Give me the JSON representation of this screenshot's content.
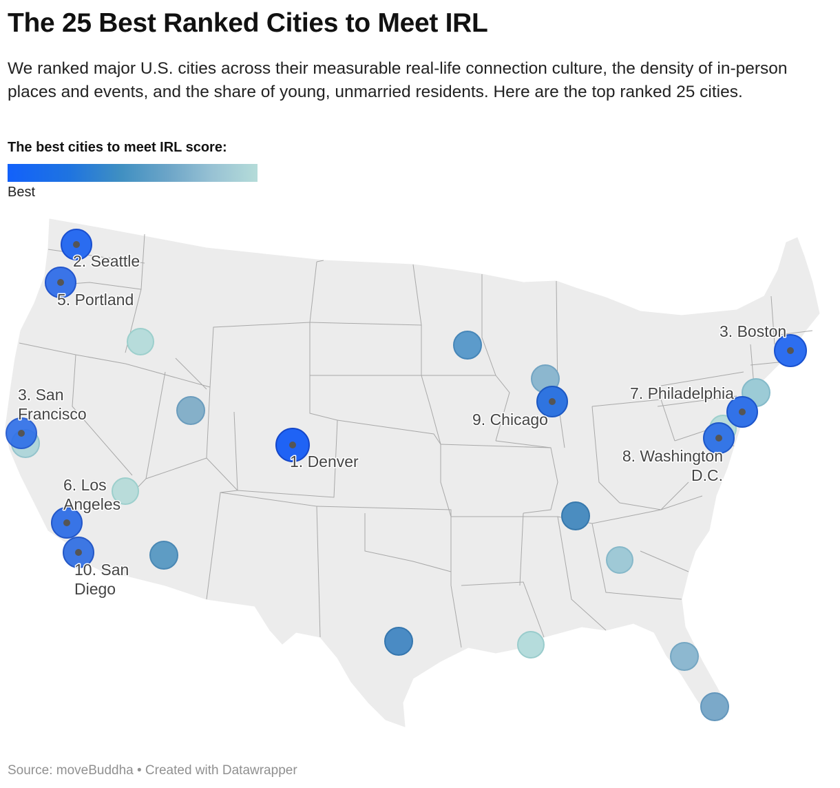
{
  "title": "The 25 Best Ranked Cities to Meet IRL",
  "subtitle": "We ranked major U.S. cities across their measurable real-life connection culture, the density of in-person places and events, and the share of young, unmarried residents. Here are the top ranked 25 cities.",
  "legend": {
    "title": "The best cities to meet IRL score:",
    "low_label": "Best",
    "gradient": [
      "#1261fb",
      "#1f74e0",
      "#3f8fc2",
      "#6ea6c8",
      "#98c2d4",
      "#b5dcd9"
    ]
  },
  "source": "Source: moveBuddha • Created with Datawrapper",
  "colors": {
    "land": "#ececec",
    "border": "#a8a8a8"
  },
  "cities": [
    {
      "label": "2. Seattle",
      "color": "#2a6cf0"
    },
    {
      "label": "5. Portland",
      "color": "#3a74e8"
    },
    {
      "label": "3. San Francisco",
      "color": "#2d6ee8"
    },
    {
      "label": "1. Denver",
      "color": "#1f63f5"
    },
    {
      "label": "6. Los Angeles",
      "color": "#3874e6"
    },
    {
      "label": "10. San Diego",
      "color": "#3d77e3"
    },
    {
      "label": "9. Chicago",
      "color": "#2f74e0"
    },
    {
      "label": "3. Boston",
      "color": "#2d6ef0"
    },
    {
      "label": "7. Philadelphia",
      "color": "#3272e8"
    },
    {
      "label": "8. Washington D.C.",
      "color": "#3576e6"
    },
    {
      "label": "",
      "color": "#b7dcdb"
    },
    {
      "label": "",
      "color": "#85b0c9"
    },
    {
      "label": "",
      "color": "#b0d6da"
    },
    {
      "label": "",
      "color": "#5e9cc4"
    },
    {
      "label": "",
      "color": "#5c9bcb"
    },
    {
      "label": "",
      "color": "#4b8dc0"
    },
    {
      "label": "",
      "color": "#8cb7cf"
    },
    {
      "label": "",
      "color": "#4a8bc4"
    },
    {
      "label": "",
      "color": "#9fc9d6"
    },
    {
      "label": "",
      "color": "#5896c4"
    },
    {
      "label": "",
      "color": "#b5dcdc"
    },
    {
      "label": "",
      "color": "#8db8d0"
    },
    {
      "label": "",
      "color": "#7ba9c9"
    },
    {
      "label": "",
      "color": "#9ccbd6"
    },
    {
      "label": "",
      "color": "#b9dcda"
    }
  ]
}
